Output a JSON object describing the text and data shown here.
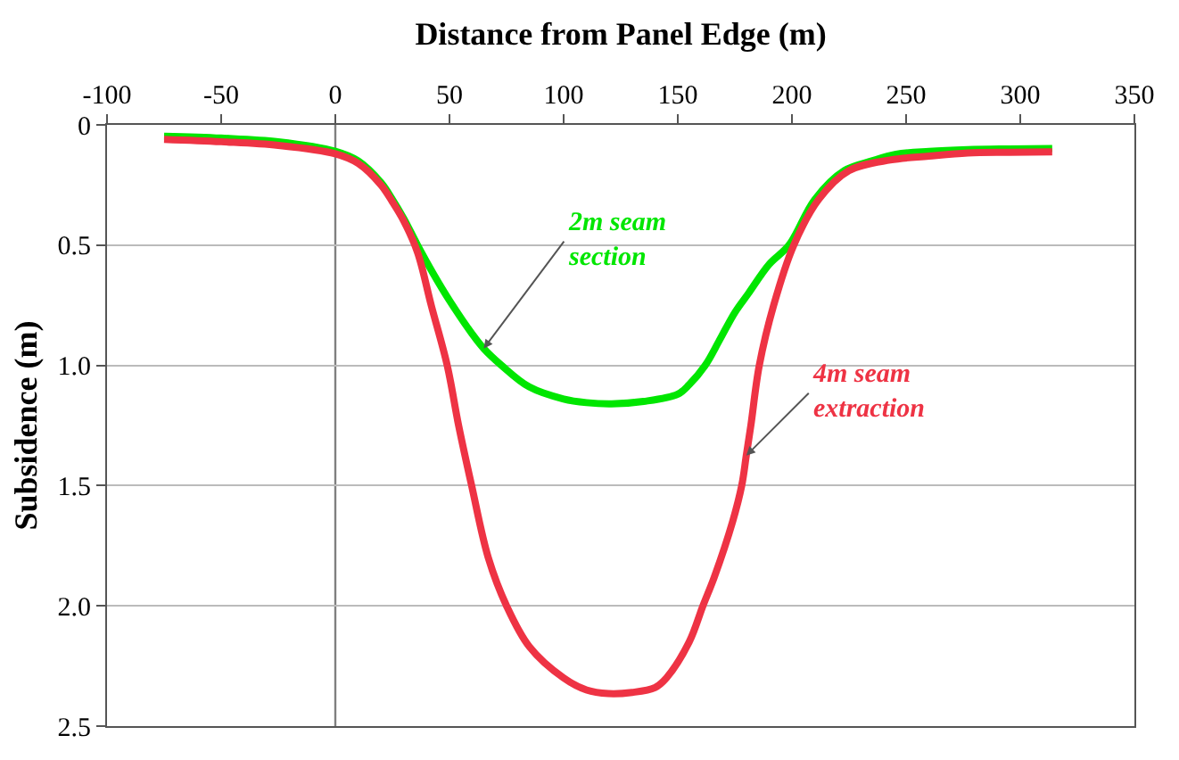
{
  "chart_data": {
    "type": "line",
    "xlabel": "Distance from Panel Edge (m)",
    "ylabel": "Subsidence (m)",
    "xlim": [
      -100,
      350
    ],
    "xticks": [
      -100,
      -50,
      0,
      50,
      100,
      150,
      200,
      250,
      300,
      350
    ],
    "ylim": [
      2.5,
      0
    ],
    "yticks": [
      0,
      0.5,
      {
        "value": 1,
        "label": "1.0"
      },
      1.5,
      {
        "value": 2,
        "label": "2.0"
      },
      2.5
    ],
    "grid": "y",
    "marker": "none",
    "line_style": "solid",
    "ref_lines": [
      {
        "axis": "x",
        "value": 0,
        "color": "#808080"
      }
    ],
    "series": [
      {
        "color": "#00e600",
        "x": [
          -75,
          -50,
          -25,
          0,
          10,
          20,
          25,
          30,
          36,
          43,
          50,
          60,
          65,
          72.8,
          85,
          100,
          110,
          121,
          135,
          150,
          155,
          162,
          168,
          175,
          181,
          190,
          198.7,
          210,
          223,
          235,
          245.6,
          260,
          277,
          295,
          314
        ],
        "values": [
          0.047,
          0.055,
          0.07,
          0.11,
          0.15,
          0.24,
          0.31,
          0.39,
          0.5,
          0.62,
          0.73,
          0.87,
          0.93,
          1.0,
          1.09,
          1.14,
          1.155,
          1.16,
          1.15,
          1.12,
          1.08,
          1.0,
          0.9,
          0.78,
          0.7,
          0.58,
          0.5,
          0.31,
          0.19,
          0.15,
          0.122,
          0.11,
          0.103,
          0.1,
          0.098
        ]
      },
      {
        "color": "#ee3344",
        "x": [
          -75,
          -50,
          -25,
          0,
          10,
          20,
          25,
          30,
          36,
          42,
          49,
          54,
          59.7,
          67,
          75,
          85,
          100,
          110,
          119.6,
          130,
          140,
          145,
          155,
          161,
          166,
          174,
          178,
          180,
          182,
          185.7,
          192,
          200.8,
          211.7,
          225,
          243,
          260,
          277,
          295,
          314
        ],
        "values": [
          0.06,
          0.07,
          0.085,
          0.12,
          0.16,
          0.25,
          0.32,
          0.4,
          0.53,
          0.75,
          1.0,
          1.25,
          1.5,
          1.8,
          2.0,
          2.17,
          2.3,
          2.35,
          2.365,
          2.36,
          2.34,
          2.3,
          2.15,
          2.0,
          1.88,
          1.65,
          1.5,
          1.375,
          1.25,
          1.0,
          0.75,
          0.5,
          0.31,
          0.19,
          0.146,
          0.13,
          0.117,
          0.114,
          0.112
        ]
      }
    ],
    "annotations": [
      {
        "text": "2m seam\nsection",
        "x": 65,
        "y": 0.93
      },
      {
        "text": "4m seam\nextraction",
        "x": 180,
        "y": 1.375
      }
    ]
  }
}
